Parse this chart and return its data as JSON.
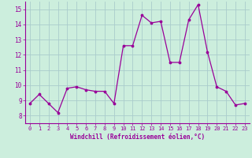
{
  "x": [
    0,
    1,
    2,
    3,
    4,
    5,
    6,
    7,
    8,
    9,
    10,
    11,
    12,
    13,
    14,
    15,
    16,
    17,
    18,
    19,
    20,
    21,
    22,
    23
  ],
  "y": [
    8.8,
    9.4,
    8.8,
    8.2,
    9.8,
    9.9,
    9.7,
    9.6,
    9.6,
    8.8,
    12.6,
    12.6,
    14.6,
    14.1,
    14.2,
    11.5,
    11.5,
    14.3,
    15.3,
    12.2,
    9.9,
    9.6,
    8.7,
    8.8
  ],
  "line_color": "#990099",
  "marker_color": "#990099",
  "bg_color": "#cceedd",
  "grid_color": "#aacccc",
  "xlabel": "Windchill (Refroidissement éolien,°C)",
  "xlabel_color": "#990099",
  "xtick_color": "#990099",
  "ytick_color": "#990099",
  "ylim": [
    7.5,
    15.5
  ],
  "xlim": [
    -0.5,
    23.5
  ],
  "yticks": [
    8,
    9,
    10,
    11,
    12,
    13,
    14,
    15
  ],
  "xticks": [
    0,
    1,
    2,
    3,
    4,
    5,
    6,
    7,
    8,
    9,
    10,
    11,
    12,
    13,
    14,
    15,
    16,
    17,
    18,
    19,
    20,
    21,
    22,
    23
  ]
}
